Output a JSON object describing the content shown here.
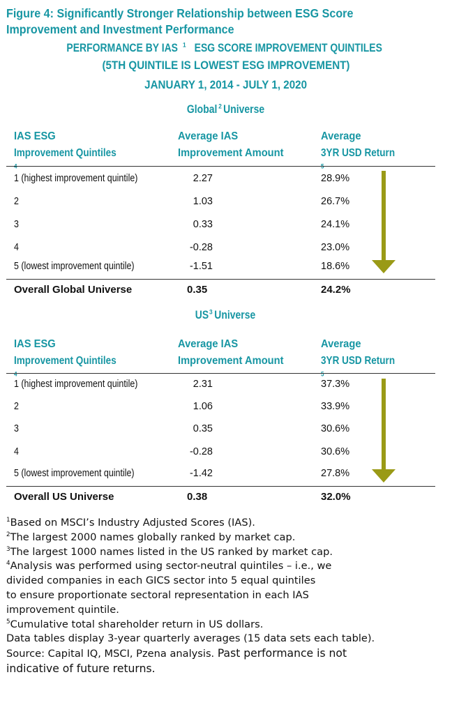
{
  "figure": {
    "title_line1": "Figure 4:  Significantly Stronger Relationship between ESG Score",
    "title_line2": "Improvement and Investment Performance",
    "subtitle_line1_pre": "PERFORMANCE BY IAS",
    "subtitle_line1_sup": "1",
    "subtitle_line1_post": " ESG SCORE IMPROVEMENT QUINTILES",
    "subtitle_line2": "(5TH QUINTILE IS LOWEST ESG IMPROVEMENT)",
    "date_range": "JANUARY 1, 2014 - JULY 1, 2020"
  },
  "colors": {
    "accent": "#1796a3",
    "arrow": "#9a9a16",
    "text": "#111111"
  },
  "columns": {
    "c1_line1": "IAS ESG",
    "c1_line2": "Improvement Quintiles",
    "c1_sup": "4",
    "c2_line1": "Average IAS",
    "c2_line2": "Improvement Amount",
    "c3_line1": "Average",
    "c3_line2": "3YR USD Return",
    "c3_sup": "5"
  },
  "global_table": {
    "heading_pre": "Global",
    "heading_sup": "2",
    "heading_post": " Universe",
    "rows": [
      {
        "quintile": "1 (highest improvement quintile)",
        "amount": "2.27",
        "return": "28.9%"
      },
      {
        "quintile": "2",
        "amount": "1.03",
        "return": "26.7%"
      },
      {
        "quintile": "3",
        "amount": "0.33",
        "return": "24.1%"
      },
      {
        "quintile": "4",
        "amount": "-0.28",
        "return": "23.0%"
      },
      {
        "quintile": "5 (lowest improvement quintile)",
        "amount": "-1.51",
        "return": "18.6%"
      }
    ],
    "total": {
      "label": "Overall Global Universe",
      "amount": "0.35",
      "return": "24.2%"
    }
  },
  "us_table": {
    "heading_pre": "US",
    "heading_sup": "3",
    "heading_post": " Universe",
    "rows": [
      {
        "quintile": "1 (highest improvement quintile)",
        "amount": "2.31",
        "return": "37.3%"
      },
      {
        "quintile": "2",
        "amount": "1.06",
        "return": "33.9%"
      },
      {
        "quintile": "3",
        "amount": "0.35",
        "return": "30.6%"
      },
      {
        "quintile": "4",
        "amount": "-0.28",
        "return": "30.6%"
      },
      {
        "quintile": "5 (lowest improvement quintile)",
        "amount": "-1.42",
        "return": "27.8%"
      }
    ],
    "total": {
      "label": "Overall US Universe",
      "amount": "0.38",
      "return": "32.0%"
    }
  },
  "footnotes": {
    "n1_sup": "1",
    "n1": "Based on MSCI’s Industry Adjusted Scores (IAS).",
    "n2_sup": "2",
    "n2": "The largest 2000 names globally ranked by market cap.",
    "n3_sup": "3",
    "n3": "The largest 1000 names listed in the US ranked by market cap.",
    "n4_sup": "4",
    "n4_line1": "Analysis was performed using sector-neutral quintiles – i.e., we",
    "n4_line2": "divided companies in each GICS sector into 5 equal quintiles",
    "n4_line3": "to ensure proportionate sectoral representation in each IAS",
    "n4_line4": "improvement quintile.",
    "n5_sup": "5",
    "n5": "Cumulative total shareholder return in US dollars.",
    "data_note": "Data tables display 3-year quarterly averages (15 data sets each table).",
    "source": "Source: Capital IQ, MSCI, Pzena analysis. ",
    "disclaimer_line1": "Past performance is not",
    "disclaimer_line2": "indicative of future returns."
  }
}
